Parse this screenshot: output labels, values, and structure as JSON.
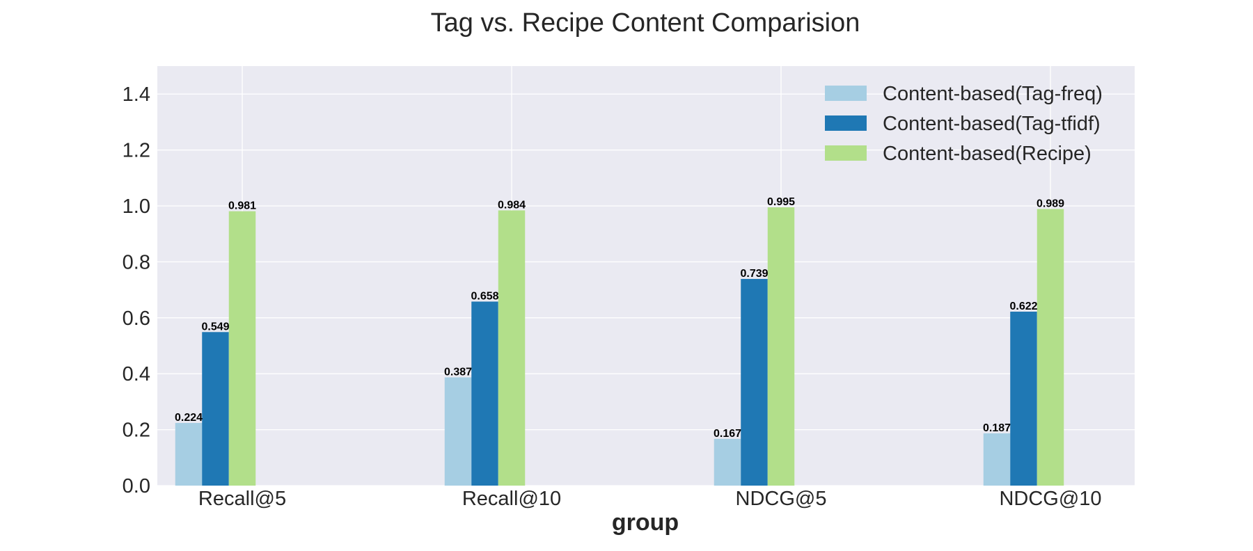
{
  "chart_data": {
    "type": "bar",
    "title": "Tag vs. Recipe Content Comparision",
    "xlabel": "group",
    "ylabel": "",
    "ylim": [
      0,
      1.5
    ],
    "yticks": [
      "0.0",
      "0.2",
      "0.4",
      "0.6",
      "0.8",
      "1.0",
      "1.2",
      "1.4"
    ],
    "categories": [
      "Recall@5",
      "Recall@10",
      "NDCG@5",
      "NDCG@10"
    ],
    "grid": true,
    "legend_position": "top-right",
    "series": [
      {
        "name": "Content-based(Tag-freq)",
        "color": "#a6cee3",
        "values": [
          0.224,
          0.387,
          0.167,
          0.187
        ],
        "labels": [
          "0.224",
          "0.387",
          "0.167",
          "0.187"
        ]
      },
      {
        "name": "Content-based(Tag-tfidf)",
        "color": "#1f78b4",
        "values": [
          0.549,
          0.658,
          0.739,
          0.622
        ],
        "labels": [
          "0.549",
          "0.658",
          "0.739",
          "0.622"
        ]
      },
      {
        "name": "Content-based(Recipe)",
        "color": "#b2df8a",
        "values": [
          0.981,
          0.984,
          0.995,
          0.989
        ],
        "labels": [
          "0.981",
          "0.984",
          "0.995",
          "0.989"
        ]
      }
    ],
    "colors": {
      "plot_background": "#eaeaf2",
      "grid": "#ffffff",
      "text": "#262626"
    }
  }
}
